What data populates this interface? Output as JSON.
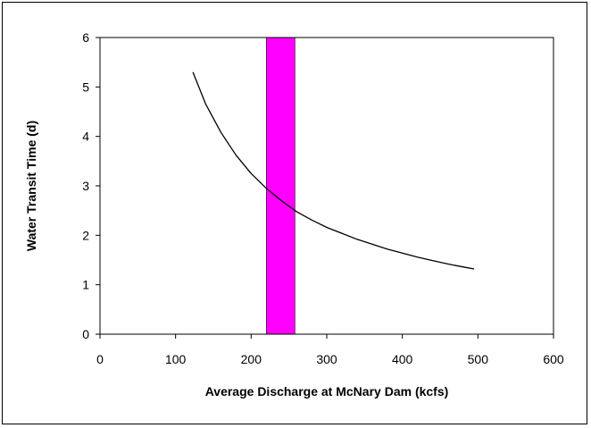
{
  "chart_data": {
    "type": "line",
    "title": "",
    "xlabel": "Average Discharge at McNary Dam (kcfs)",
    "ylabel": "Water Transit Time (d)",
    "xlim": [
      0,
      600
    ],
    "ylim": [
      0,
      6
    ],
    "xticks": [
      "0",
      "100",
      "200",
      "300",
      "400",
      "500",
      "600"
    ],
    "yticks": [
      "0",
      "1",
      "2",
      "3",
      "4",
      "5",
      "6"
    ],
    "grid": false,
    "legend": "none",
    "series": [
      {
        "color": "#000000",
        "x": [
          123,
          140,
          160,
          180,
          200,
          220,
          240,
          260,
          280,
          300,
          320,
          340,
          360,
          380,
          400,
          420,
          440,
          460,
          480,
          495
        ],
        "y": [
          5.3,
          4.65,
          4.08,
          3.62,
          3.25,
          2.95,
          2.7,
          2.48,
          2.31,
          2.16,
          2.04,
          1.92,
          1.82,
          1.72,
          1.64,
          1.56,
          1.49,
          1.42,
          1.36,
          1.32
        ]
      }
    ],
    "highlight_band": {
      "x_start": 220,
      "x_end": 258,
      "color": "#FF00FF"
    }
  }
}
